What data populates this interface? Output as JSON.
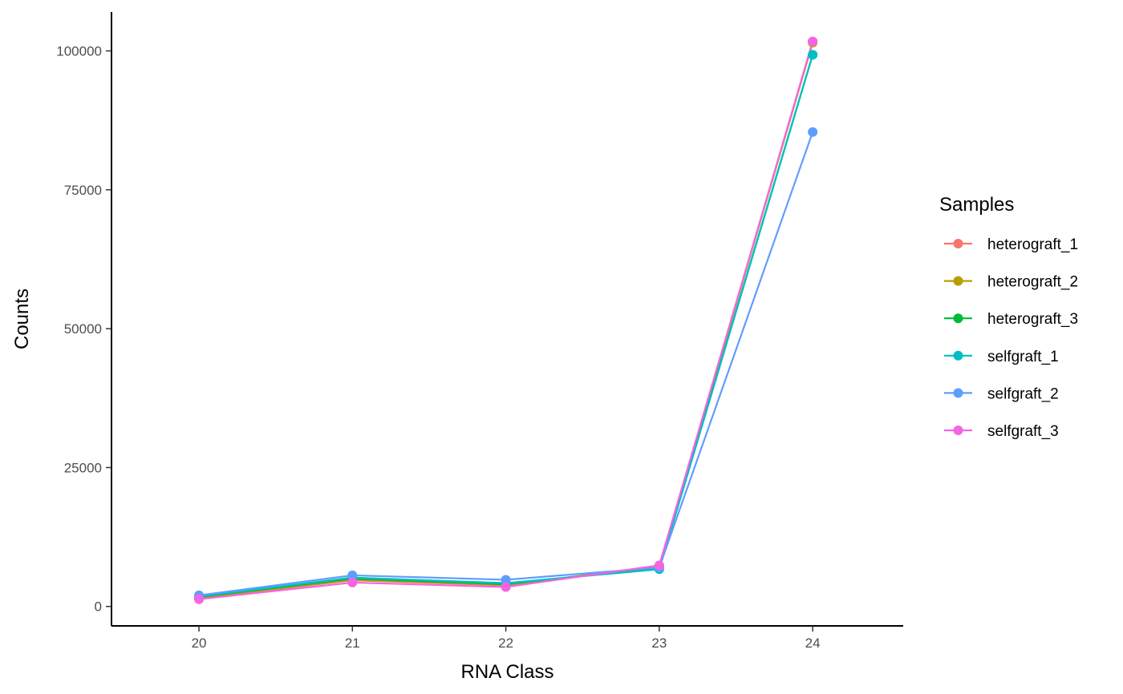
{
  "chart_data": {
    "type": "line",
    "title": "",
    "xlabel": "RNA Class",
    "ylabel": "Counts",
    "x": [
      20,
      21,
      22,
      23,
      24
    ],
    "x_tick_labels": [
      "20",
      "21",
      "22",
      "23",
      "24"
    ],
    "xlim": [
      19.43,
      24.59
    ],
    "y_ticks": [
      0,
      25000,
      50000,
      75000,
      100000
    ],
    "y_tick_labels": [
      "0",
      "25000",
      "50000",
      "75000",
      "100000"
    ],
    "ylim": [
      -3500,
      107000
    ],
    "grid": false,
    "legend": {
      "title": "Samples",
      "position": "right"
    },
    "series": [
      {
        "name": "heterograft_1",
        "color": "#F8766D",
        "values": [
          1500,
          4700,
          3800,
          7300,
          101700
        ]
      },
      {
        "name": "heterograft_2",
        "color": "#B79F00",
        "values": [
          1600,
          4800,
          3900,
          7200,
          101500
        ]
      },
      {
        "name": "heterograft_3",
        "color": "#00BA38",
        "values": [
          1700,
          5000,
          4000,
          7000,
          99300
        ]
      },
      {
        "name": "selfgraft_1",
        "color": "#00BFC4",
        "values": [
          1800,
          5200,
          4200,
          6700,
          99300
        ]
      },
      {
        "name": "selfgraft_2",
        "color": "#619CFF",
        "values": [
          2000,
          5600,
          4800,
          7000,
          85400
        ]
      },
      {
        "name": "selfgraft_3",
        "color": "#F564E3",
        "values": [
          1300,
          4300,
          3500,
          7400,
          101700
        ]
      }
    ]
  }
}
